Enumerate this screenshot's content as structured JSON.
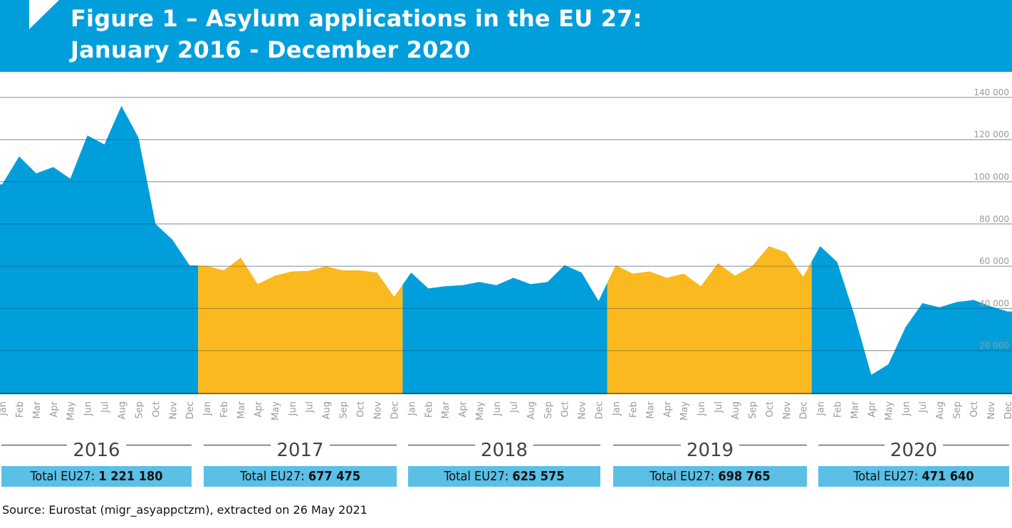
{
  "header": {
    "title_line1": "Figure 1 – Asylum applications in the EU 27:",
    "title_line2": "January 2016 - December 2020"
  },
  "colors": {
    "header_bg": "#009fdb",
    "series_blue": "#009fdb",
    "series_yellow": "#fab91e",
    "total_box": "#5bbfe6",
    "grid": "#c8c8c8",
    "tick_text": "#999999"
  },
  "chart_data": {
    "type": "area",
    "title": "Figure 1 – Asylum applications in the EU 27: January 2016 - December 2020",
    "xlabel": "",
    "ylabel": "",
    "ylim": [
      0,
      140000
    ],
    "y_ticks": [
      20000,
      40000,
      60000,
      80000,
      100000,
      120000,
      140000
    ],
    "y_tick_labels": [
      "20 000",
      "40 000",
      "60 000",
      "80 000",
      "100 000",
      "120 000",
      "140 000"
    ],
    "grid": true,
    "y_axis_position": "right",
    "month_labels": [
      "Jan",
      "Feb",
      "Mar",
      "Apr",
      "May",
      "Jun",
      "Jul",
      "Aug",
      "Sep",
      "Oct",
      "Nov",
      "Dec"
    ],
    "series": [
      {
        "name": "2016",
        "color": "#009fdb",
        "values": [
          98800,
          112000,
          104000,
          107000,
          101500,
          122000,
          117700,
          136000,
          121000,
          80000,
          72500,
          60400
        ]
      },
      {
        "name": "2017",
        "color": "#fab91e",
        "values": [
          60200,
          58000,
          64000,
          51500,
          55500,
          57500,
          57800,
          60000,
          58000,
          58000,
          57000,
          45500
        ]
      },
      {
        "name": "2018",
        "color": "#009fdb",
        "values": [
          57000,
          49500,
          50500,
          51000,
          52500,
          51000,
          54500,
          51500,
          52500,
          60500,
          57000,
          43500
        ]
      },
      {
        "name": "2019",
        "color": "#fab91e",
        "values": [
          60500,
          56500,
          57500,
          54500,
          56500,
          50500,
          61500,
          55500,
          60000,
          69500,
          66500,
          55000
        ]
      },
      {
        "name": "2020",
        "color": "#009fdb",
        "values": [
          69500,
          62000,
          37000,
          8500,
          13500,
          31000,
          42500,
          40500,
          43000,
          44000,
          41000,
          38500
        ]
      }
    ]
  },
  "years": [
    {
      "label": "2016",
      "total_prefix": "Total EU27: ",
      "total_value": "1 221 180"
    },
    {
      "label": "2017",
      "total_prefix": "Total EU27: ",
      "total_value": "677 475"
    },
    {
      "label": "2018",
      "total_prefix": "Total EU27: ",
      "total_value": "625 575"
    },
    {
      "label": "2019",
      "total_prefix": "Total EU27: ",
      "total_value": "698 765"
    },
    {
      "label": "2020",
      "total_prefix": "Total EU27: ",
      "total_value": "471 640"
    }
  ],
  "source": "Source: Eurostat (migr_asyappctzm), extracted on 26 May 2021"
}
